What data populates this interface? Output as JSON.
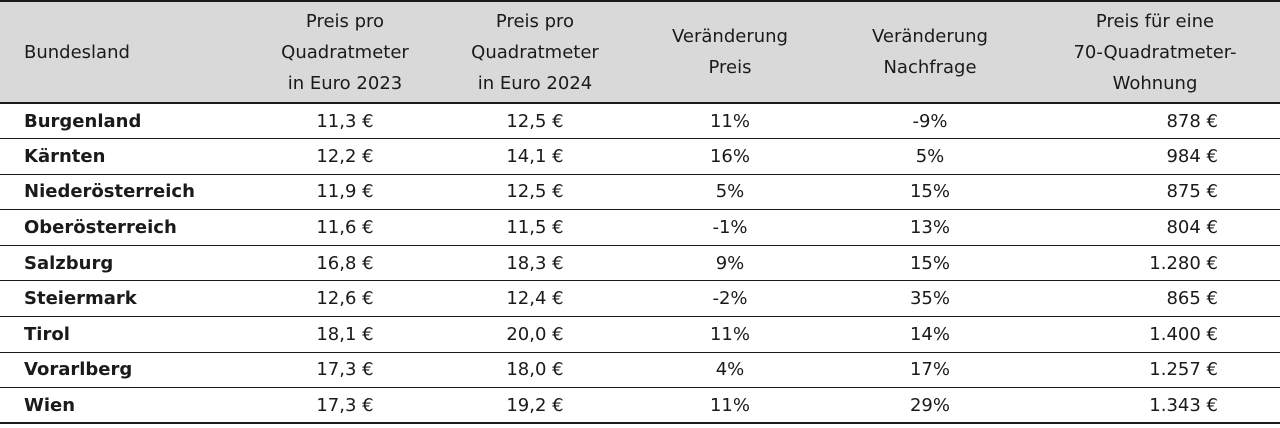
{
  "table": {
    "headers": {
      "state": "Bundesland",
      "price_2023": [
        "Preis pro",
        "Quadratmeter",
        "in Euro 2023"
      ],
      "price_2024": [
        "Preis pro",
        "Quadratmeter",
        "in Euro 2024"
      ],
      "change_price": [
        "Veränderung",
        "Preis"
      ],
      "change_demand": [
        "Veränderung",
        "Nachfrage"
      ],
      "flat_price": [
        "Preis für eine",
        "70-Quadratmeter-",
        "Wohnung"
      ]
    },
    "rows": [
      {
        "state": "Burgenland",
        "price_2023": "11,3 €",
        "price_2024": "12,5 €",
        "change_price": "11%",
        "change_demand": "-9%",
        "flat_price": "878 €"
      },
      {
        "state": "Kärnten",
        "price_2023": "12,2 €",
        "price_2024": "14,1 €",
        "change_price": "16%",
        "change_demand": "5%",
        "flat_price": "984 €"
      },
      {
        "state": "Niederösterreich",
        "price_2023": "11,9 €",
        "price_2024": "12,5 €",
        "change_price": "5%",
        "change_demand": "15%",
        "flat_price": "875 €"
      },
      {
        "state": "Oberösterreich",
        "price_2023": "11,6 €",
        "price_2024": "11,5 €",
        "change_price": "-1%",
        "change_demand": "13%",
        "flat_price": "804 €"
      },
      {
        "state": "Salzburg",
        "price_2023": "16,8 €",
        "price_2024": "18,3 €",
        "change_price": "9%",
        "change_demand": "15%",
        "flat_price": "1.280 €"
      },
      {
        "state": "Steiermark",
        "price_2023": "12,6 €",
        "price_2024": "12,4 €",
        "change_price": "-2%",
        "change_demand": "35%",
        "flat_price": "865 €"
      },
      {
        "state": "Tirol",
        "price_2023": "18,1 €",
        "price_2024": "20,0 €",
        "change_price": "11%",
        "change_demand": "14%",
        "flat_price": "1.400 €"
      },
      {
        "state": "Vorarlberg",
        "price_2023": "17,3 €",
        "price_2024": "18,0 €",
        "change_price": "4%",
        "change_demand": "17%",
        "flat_price": "1.257 €"
      },
      {
        "state": "Wien",
        "price_2023": "17,3 €",
        "price_2024": "19,2 €",
        "change_price": "11%",
        "change_demand": "29%",
        "flat_price": "1.343 €"
      }
    ]
  }
}
